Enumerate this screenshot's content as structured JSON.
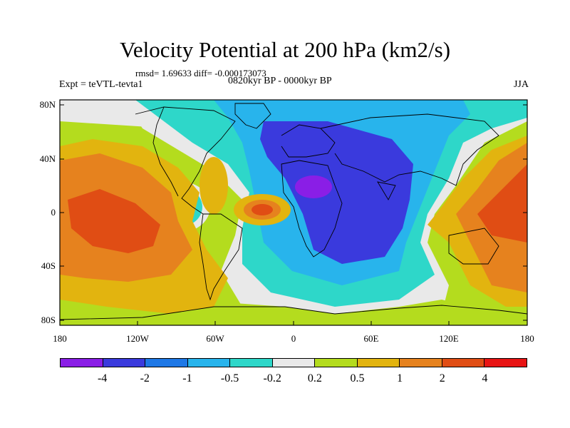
{
  "title": "Velocity Potential at 200 hPa (km2/s)",
  "stats": "rmsd= 1.69633 diff= -0.000173073",
  "expt": "Expt = teVTL-tevta1",
  "period": "0820kyr BP - 0000kyr BP",
  "season": "JJA",
  "y_axis_labels": [
    "80N",
    "40N",
    "0",
    "40S",
    "80S"
  ],
  "x_axis_labels": [
    "180",
    "120W",
    "60W",
    "0",
    "60E",
    "120E",
    "180"
  ],
  "colorbar": {
    "colors": [
      "#8a1ee6",
      "#3a3add",
      "#1e78e6",
      "#28b4ec",
      "#2ed7c9",
      "#e9e9e9",
      "#b4dc1e",
      "#e2b40f",
      "#e6821e",
      "#e04d14",
      "#e81414"
    ],
    "labels": [
      "-4",
      "-2",
      "-1",
      "-0.5",
      "-0.2",
      "0.2",
      "0.5",
      "1",
      "2",
      "4"
    ]
  }
}
